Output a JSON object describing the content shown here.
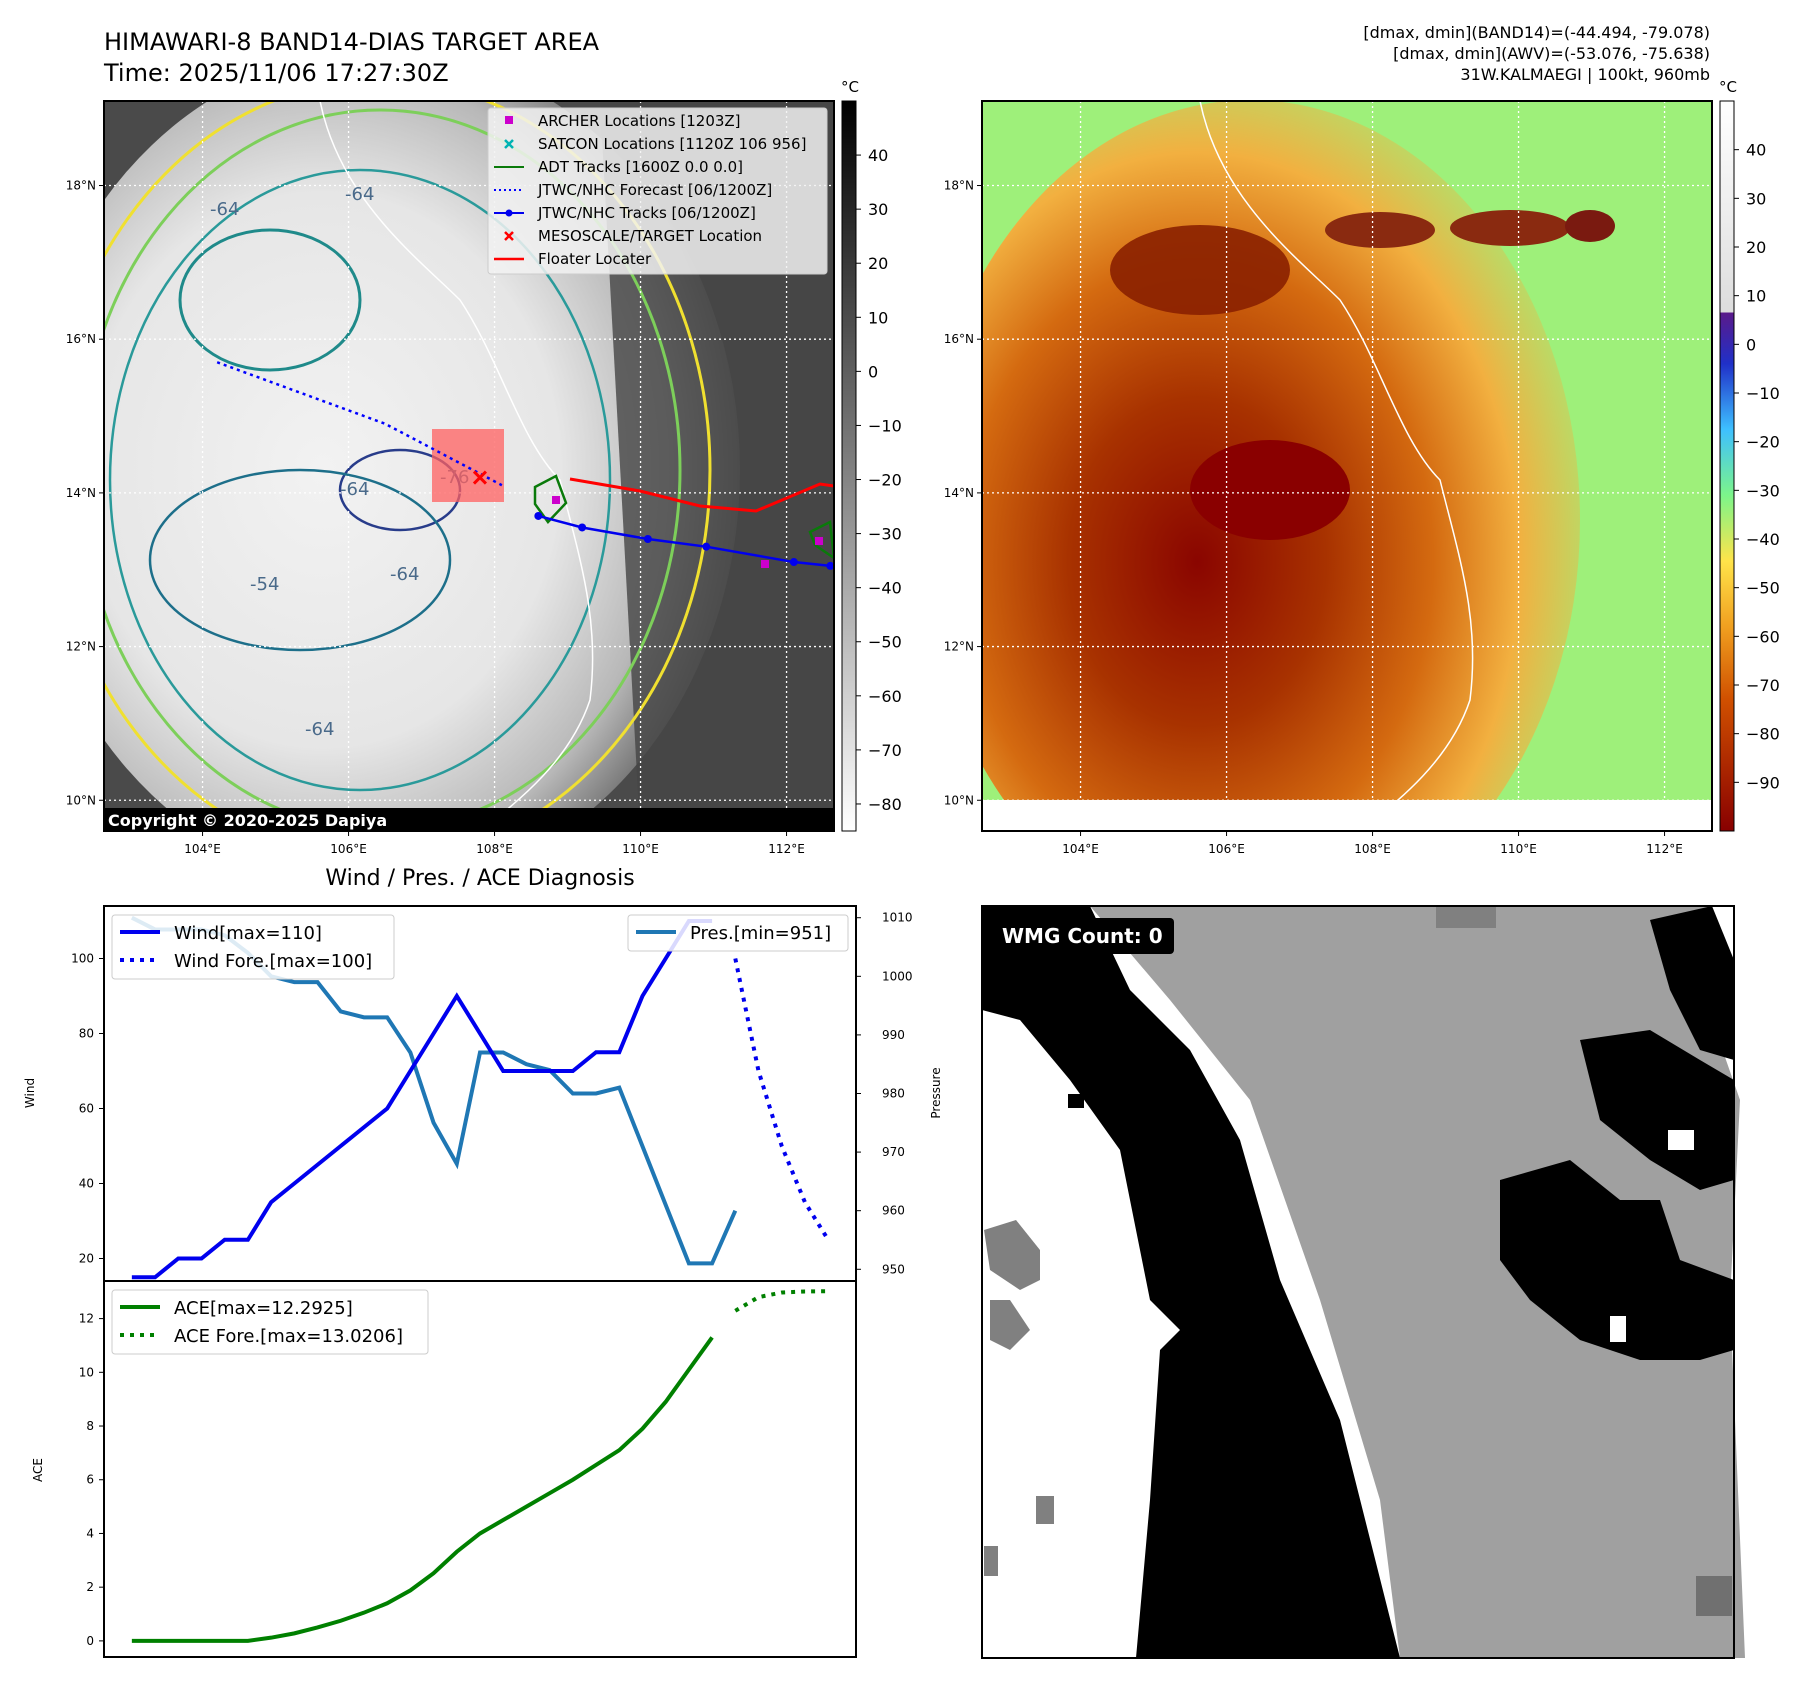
{
  "header": {
    "title_line1": "HIMAWARI-8 BAND14-DIAS TARGET AREA",
    "title_line2": "Time: 2025/11/06 17:27:30Z",
    "info_line1": "[dmax, dmin](BAND14)=(-44.494, -79.078)",
    "info_line2": "[dmax, dmin](AWV)=(-53.076, -75.638)",
    "info_line3": "31W.KALMAEGI | 100kt, 960mb"
  },
  "copyright": "Copyright © 2020-2025 Dapiya",
  "colorbar": {
    "unit": "°C"
  },
  "colors": {
    "wind": "#0000ee",
    "pressure": "#1f77b4",
    "ace": "#008000",
    "track_red": "#ff0000",
    "archer": "#cc00cc",
    "satcon": "#00b3b3"
  },
  "legend_map": [
    {
      "label": "ARCHER Locations [1203Z]",
      "icon": "magenta-square"
    },
    {
      "label": "SATCON Locations [1120Z 106 956]",
      "icon": "cyan-x"
    },
    {
      "label": "ADT Tracks [1600Z 0.0 0.0]",
      "icon": "green-line"
    },
    {
      "label": "JTWC/NHC Forecast [06/1200Z]",
      "icon": "blue-dotted-line"
    },
    {
      "label": "JTWC/NHC Tracks [06/1200Z]",
      "icon": "blue-line-dot"
    },
    {
      "label": "MESOSCALE/TARGET Location",
      "icon": "red-x"
    },
    {
      "label": "Floater Locater",
      "icon": "red-line"
    }
  ],
  "chart_data": [
    {
      "type": "heatmap",
      "name": "band14-grayscale-map",
      "x_ticks": [
        "104°E",
        "106°E",
        "108°E",
        "110°E",
        "112°E"
      ],
      "x_tick_values": [
        104,
        106,
        108,
        110,
        112
      ],
      "y_ticks": [
        "18°N",
        "16°N",
        "14°N",
        "12°N",
        "10°N"
      ],
      "y_tick_values": [
        18,
        16,
        14,
        12,
        10
      ],
      "xlim": [
        102.65,
        112.65
      ],
      "ylim": [
        9.6,
        19.1
      ],
      "colorbar_ticks": [
        40,
        30,
        20,
        10,
        0,
        -10,
        -20,
        -30,
        -40,
        -50,
        -60,
        -70,
        -80
      ],
      "contour_labels": [
        "-64",
        "-64",
        "-76",
        "-64",
        "-54",
        "-64",
        "-64"
      ],
      "jtwc_track_lon": [
        108.6,
        109.2,
        110.1,
        110.9,
        112.1,
        112.6
      ],
      "jtwc_track_lat": [
        13.7,
        13.55,
        13.4,
        13.3,
        13.1,
        13.05
      ],
      "forecast_lon": [
        104.2,
        106.5,
        108.1
      ],
      "forecast_lat": [
        15.7,
        14.9,
        14.1
      ],
      "target_lon": 107.8,
      "target_lat": 14.2
    },
    {
      "type": "heatmap",
      "name": "awv-enhanced-map",
      "x_ticks": [
        "104°E",
        "106°E",
        "108°E",
        "110°E",
        "112°E"
      ],
      "x_tick_values": [
        104,
        106,
        108,
        110,
        112
      ],
      "y_ticks": [
        "18°N",
        "16°N",
        "14°N",
        "12°N",
        "10°N"
      ],
      "y_tick_values": [
        18,
        16,
        14,
        12,
        10
      ],
      "xlim": [
        102.65,
        112.65
      ],
      "ylim": [
        9.6,
        19.1
      ],
      "colorbar_ticks": [
        40,
        30,
        20,
        10,
        0,
        -10,
        -20,
        -30,
        -40,
        -50,
        -60,
        -70,
        -80,
        -90
      ]
    },
    {
      "type": "line",
      "title": "Wind / Pres. / ACE Diagnosis",
      "ylabel": "Wind",
      "ylabel_right": "Pressure",
      "ylim": [
        14,
        114
      ],
      "y_ticks": [
        20,
        40,
        60,
        80,
        100
      ],
      "ylim_right": [
        948,
        1012
      ],
      "y_ticks_right": [
        950,
        960,
        970,
        980,
        990,
        1000,
        1010
      ],
      "series": [
        {
          "name": "Wind[max=110]",
          "x": [
            0,
            1,
            2,
            3,
            4,
            5,
            6,
            7,
            8,
            9,
            10,
            11,
            12,
            13,
            14,
            15,
            16,
            17,
            18,
            19,
            20,
            21,
            22,
            23,
            24,
            25
          ],
          "values": [
            15,
            15,
            20,
            20,
            25,
            25,
            35,
            40,
            45,
            50,
            55,
            60,
            70,
            80,
            90,
            80,
            70,
            70,
            70,
            70,
            75,
            75,
            90,
            100,
            110,
            110
          ]
        },
        {
          "name": "Wind Fore.[max=100]",
          "x": [
            26,
            27,
            28,
            29,
            30
          ],
          "values": [
            100,
            70,
            50,
            35,
            25
          ]
        },
        {
          "name": "Pres.[min=951]",
          "x": [
            0,
            1,
            2,
            3,
            4,
            5,
            6,
            7,
            8,
            9,
            10,
            11,
            12,
            13,
            14,
            15,
            16,
            17,
            18,
            19,
            20,
            21,
            22,
            23,
            24,
            25,
            26
          ],
          "values": [
            1010,
            1008,
            1008,
            1008,
            1007,
            1004,
            1000,
            999,
            999,
            994,
            993,
            993,
            987,
            975,
            968,
            987,
            987,
            985,
            984,
            980,
            980,
            981,
            971,
            961,
            951,
            951,
            960
          ]
        }
      ]
    },
    {
      "type": "line",
      "ylabel": "ACE",
      "ylim": [
        -0.6,
        13.4
      ],
      "y_ticks": [
        0,
        2,
        4,
        6,
        8,
        10,
        12
      ],
      "series": [
        {
          "name": "ACE[max=12.2925]",
          "x": [
            0,
            1,
            2,
            3,
            4,
            5,
            6,
            7,
            8,
            9,
            10,
            11,
            12,
            13,
            14,
            15,
            16,
            17,
            18,
            19,
            20,
            21,
            22,
            23,
            24,
            25
          ],
          "values": [
            0,
            0,
            0,
            0,
            0,
            0,
            0.12,
            0.28,
            0.5,
            0.75,
            1.05,
            1.4,
            1.88,
            2.52,
            3.32,
            4.0,
            4.5,
            5.0,
            5.5,
            6.0,
            6.55,
            7.1,
            7.9,
            8.9,
            10.1,
            11.3
          ]
        },
        {
          "name": "ACE Fore.[max=13.0206]",
          "x": [
            26,
            27,
            28,
            29,
            30
          ],
          "values": [
            12.29,
            12.8,
            12.97,
            13.01,
            13.02
          ]
        }
      ]
    },
    {
      "type": "heatmap",
      "name": "wmg-mask",
      "title": "WMG Count: 0"
    }
  ]
}
